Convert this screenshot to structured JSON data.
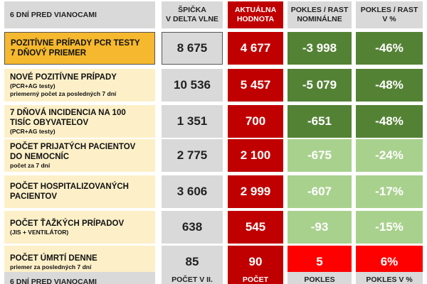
{
  "header": [
    "6 DNÍ PRED VIANOCAMI",
    "ŠPIČKA\nV DELTA VLNE",
    "AKTUÁLNA\nHODNOTA",
    "POKLES / RAST\nNOMINÁLNE",
    "POKLES / RAST\nV %"
  ],
  "rows": [
    {
      "label": {
        "title": "POZITÍVNE PRÍPADY PCR TESTY\n7 DŇOVÝ PRIEMER",
        "notes": []
      },
      "peak": "8 675",
      "current": "4 677",
      "change": "-3 998",
      "percent": "-46%",
      "change_color": "#548235"
    },
    {
      "label": {
        "title": "NOVÉ POZITÍVNE PRÍPADY",
        "notes": [
          "(PCR+AG testy)",
          "priemerný počet za posledných 7 dní"
        ]
      },
      "peak": "10 536",
      "current": "5 457",
      "change": "-5 079",
      "percent": "-48%",
      "change_color": "#548235"
    },
    {
      "label": {
        "title": "7 DŇOVÁ INCIDENCIA NA 100\nTISÍC OBYVATEĽOV",
        "notes": [
          "(PCR+AG testy)"
        ]
      },
      "peak": "1 351",
      "current": "700",
      "change": "-651",
      "percent": "-48%",
      "change_color": "#548235"
    },
    {
      "label": {
        "title": "POČET PRIJATÝCH PACIENTOV\nDO NEMOCNÍC",
        "notes": [
          "počet za 7 dní"
        ]
      },
      "peak": "2 775",
      "current": "2 100",
      "change": "-675",
      "percent": "-24%",
      "change_color": "#a9d18e"
    },
    {
      "label": {
        "title": "POČET HOSPITALIZOVANÝCH\nPACIENTOV",
        "notes": []
      },
      "peak": "3 606",
      "current": "2 999",
      "change": "-607",
      "percent": "-17%",
      "change_color": "#a9d18e"
    },
    {
      "label": {
        "title": "POČET ŤAŽKÝCH PRÍPADOV",
        "notes": [
          "(JIS + VENTILÁTOR)"
        ]
      },
      "peak": "638",
      "current": "545",
      "change": "-93",
      "percent": "-15%",
      "change_color": "#a9d18e"
    },
    {
      "label": {
        "title": "POČET ÚMRTÍ DENNE",
        "notes": [
          "priemer za posledných 7 dní"
        ]
      },
      "peak": "85",
      "current": "90",
      "change": "5",
      "percent": "6%",
      "change_color": "#ff0000"
    }
  ],
  "footer": [
    "6 DNÍ PRED VIANOCAMI",
    "POČET V II.",
    "POČET",
    "POKLES",
    "POKLES V %"
  ]
}
